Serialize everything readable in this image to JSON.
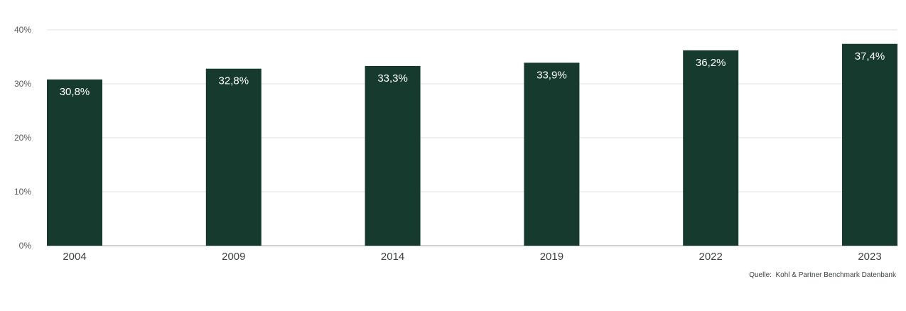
{
  "chart_data": {
    "type": "bar",
    "categories": [
      "2004",
      "2009",
      "2014",
      "2019",
      "2022",
      "2023"
    ],
    "values": [
      30.8,
      32.8,
      33.3,
      33.9,
      36.2,
      37.4
    ],
    "value_labels": [
      "30,8%",
      "32,8%",
      "33,3%",
      "33,9%",
      "36,2%",
      "37,4%"
    ],
    "ylim": [
      0,
      40
    ],
    "yticks": [
      0,
      10,
      20,
      30,
      40
    ],
    "ytick_labels": [
      "0%",
      "10%",
      "20%",
      "30%",
      "40%"
    ],
    "grid": true,
    "legend": "none",
    "title": "",
    "xlabel": "",
    "ylabel": ""
  },
  "colors": {
    "bar": "#173a2e"
  },
  "source_note": "Quelle:  Kohl & Partner Benchmark Datenbank"
}
